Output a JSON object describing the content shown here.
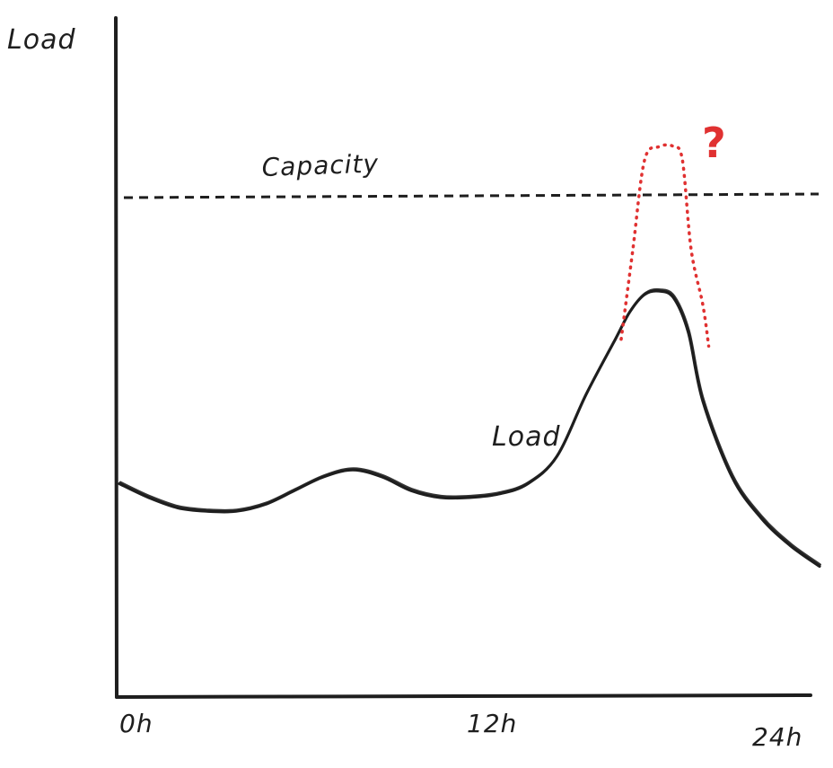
{
  "colors": {
    "ink": "#1e1e1e",
    "highlight": "#e03131",
    "background": "#ffffff"
  },
  "chart_data": {
    "type": "line",
    "ylabel": "Load",
    "xlabel": "",
    "x_tick_labels": [
      "0h",
      "12h",
      "24h"
    ],
    "xlim": [
      0,
      24
    ],
    "ylim": [
      0,
      100
    ],
    "grid": false,
    "legend": "none",
    "series": [
      {
        "name": "Load",
        "x": [
          0,
          1,
          2,
          3,
          4,
          5,
          6,
          7,
          8,
          9,
          10,
          11,
          12,
          13,
          14,
          15,
          16,
          17,
          17.5,
          18,
          18.5,
          19,
          19.5,
          20,
          21,
          22,
          23,
          24
        ],
        "y": [
          31,
          29,
          27.5,
          27,
          27,
          28,
          30,
          32,
          33,
          32,
          30,
          29,
          29,
          29.5,
          31,
          35,
          44,
          52,
          56,
          58.5,
          59,
          58,
          53,
          43,
          32,
          26,
          22,
          19
        ]
      },
      {
        "name": "",
        "style": "dotted",
        "x": [
          17.2,
          17.6,
          18,
          18.5,
          19,
          19.3,
          19.6,
          20,
          20.2
        ],
        "y": [
          52,
          65,
          78,
          80,
          80,
          78,
          65,
          57,
          51
        ]
      }
    ],
    "reference_lines": [
      {
        "label": "Capacity",
        "y": 73,
        "style": "dashed"
      }
    ],
    "annotations": [
      {
        "text": "?",
        "x": 20.2,
        "y": 81
      },
      {
        "text": "Load",
        "x": 14,
        "y": 38
      }
    ]
  }
}
